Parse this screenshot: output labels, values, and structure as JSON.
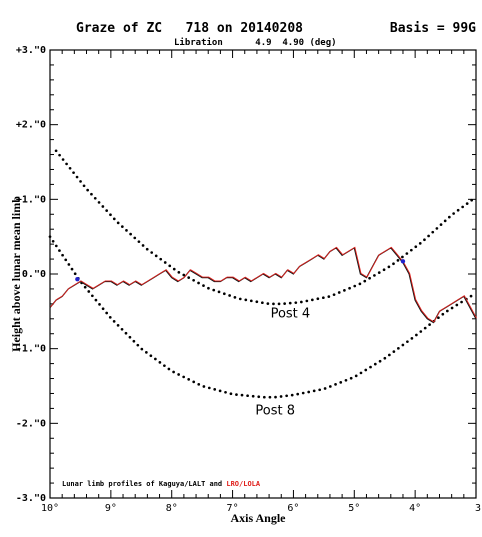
{
  "header": {
    "title": "Graze of ZC   718 on 20140208",
    "basis": "Basis = 99G",
    "libration": "Libration      4.9  4.90 (deg)"
  },
  "footnote": {
    "prefix": "Lunar limb profiles of Kaguya/LALT and ",
    "highlight": "LRO/LOLA"
  },
  "colors": {
    "axis": "#000000",
    "lola": "#e0201c",
    "lalt": "#1a1a1a",
    "marker": "#2222cc",
    "highlight": "#e0201c"
  },
  "chart_data": {
    "type": "line",
    "xlabel": "Axis Angle",
    "ylabel": "Height above lunar mean limb",
    "xlim": [
      10,
      3
    ],
    "ylim": [
      -3,
      3
    ],
    "x_ticks": [
      10,
      9,
      8,
      7,
      6,
      5,
      4,
      3
    ],
    "x_tick_labels": [
      "10°",
      "9°",
      "8°",
      "7°",
      "6°",
      "5°",
      "4°",
      "3"
    ],
    "y_ticks": [
      3,
      2,
      1,
      0,
      -1,
      -2,
      -3
    ],
    "y_tick_labels": [
      "+3.\"0",
      "+2.\"0",
      "+1.\"0",
      "0.\"0",
      "-1.\"0",
      "-2.\"0",
      "-3.\"0"
    ],
    "limb_profile": {
      "x": [
        10.0,
        9.9,
        9.8,
        9.7,
        9.6,
        9.5,
        9.4,
        9.3,
        9.2,
        9.1,
        9.0,
        8.9,
        8.8,
        8.7,
        8.6,
        8.5,
        8.4,
        8.3,
        8.2,
        8.1,
        8.0,
        7.9,
        7.8,
        7.7,
        7.6,
        7.5,
        7.4,
        7.3,
        7.2,
        7.1,
        7.0,
        6.9,
        6.8,
        6.7,
        6.6,
        6.5,
        6.4,
        6.3,
        6.2,
        6.1,
        6.0,
        5.9,
        5.8,
        5.7,
        5.6,
        5.5,
        5.4,
        5.3,
        5.2,
        5.1,
        5.0,
        4.9,
        4.8,
        4.7,
        4.6,
        4.5,
        4.4,
        4.3,
        4.2,
        4.1,
        4.0,
        3.9,
        3.8,
        3.7,
        3.6,
        3.5,
        3.4,
        3.3,
        3.2,
        3.1,
        3.0
      ],
      "y": [
        -0.45,
        -0.35,
        -0.3,
        -0.2,
        -0.15,
        -0.1,
        -0.15,
        -0.2,
        -0.15,
        -0.1,
        -0.1,
        -0.15,
        -0.1,
        -0.15,
        -0.1,
        -0.15,
        -0.1,
        -0.05,
        0.0,
        0.05,
        -0.05,
        -0.1,
        -0.05,
        0.05,
        0.0,
        -0.05,
        -0.05,
        -0.1,
        -0.1,
        -0.05,
        -0.05,
        -0.1,
        -0.05,
        -0.1,
        -0.05,
        0.0,
        -0.05,
        0.0,
        -0.05,
        0.05,
        0.0,
        0.1,
        0.15,
        0.2,
        0.25,
        0.2,
        0.3,
        0.35,
        0.25,
        0.3,
        0.35,
        0.0,
        -0.05,
        0.1,
        0.25,
        0.3,
        0.35,
        0.25,
        0.15,
        0.0,
        -0.35,
        -0.5,
        -0.6,
        -0.65,
        -0.5,
        -0.45,
        -0.4,
        -0.35,
        -0.3,
        -0.45,
        -0.6
      ]
    },
    "curves": [
      {
        "label": "Post 4",
        "x": [
          9.9,
          9.4,
          8.9,
          8.4,
          7.9,
          7.4,
          6.9,
          6.4,
          6.2,
          5.9,
          5.4,
          4.9,
          4.4,
          3.9,
          3.4,
          3.05
        ],
        "y": [
          1.65,
          1.14,
          0.7,
          0.33,
          0.03,
          -0.19,
          -0.33,
          -0.4,
          -0.4,
          -0.38,
          -0.3,
          -0.13,
          0.11,
          0.42,
          0.79,
          1.0
        ]
      },
      {
        "label": "Post 8",
        "x": [
          10.0,
          9.5,
          9.0,
          8.5,
          8.0,
          7.5,
          7.0,
          6.5,
          6.3,
          6.0,
          5.5,
          5.0,
          4.5,
          4.0,
          3.5,
          3.05
        ],
        "y": [
          0.5,
          -0.1,
          -0.59,
          -1.0,
          -1.3,
          -1.5,
          -1.61,
          -1.65,
          -1.65,
          -1.62,
          -1.54,
          -1.38,
          -1.13,
          -0.83,
          -0.51,
          -0.28
        ]
      }
    ],
    "contact_points": [
      {
        "x": 9.55,
        "y": -0.07
      },
      {
        "x": 4.2,
        "y": 0.17
      }
    ]
  }
}
